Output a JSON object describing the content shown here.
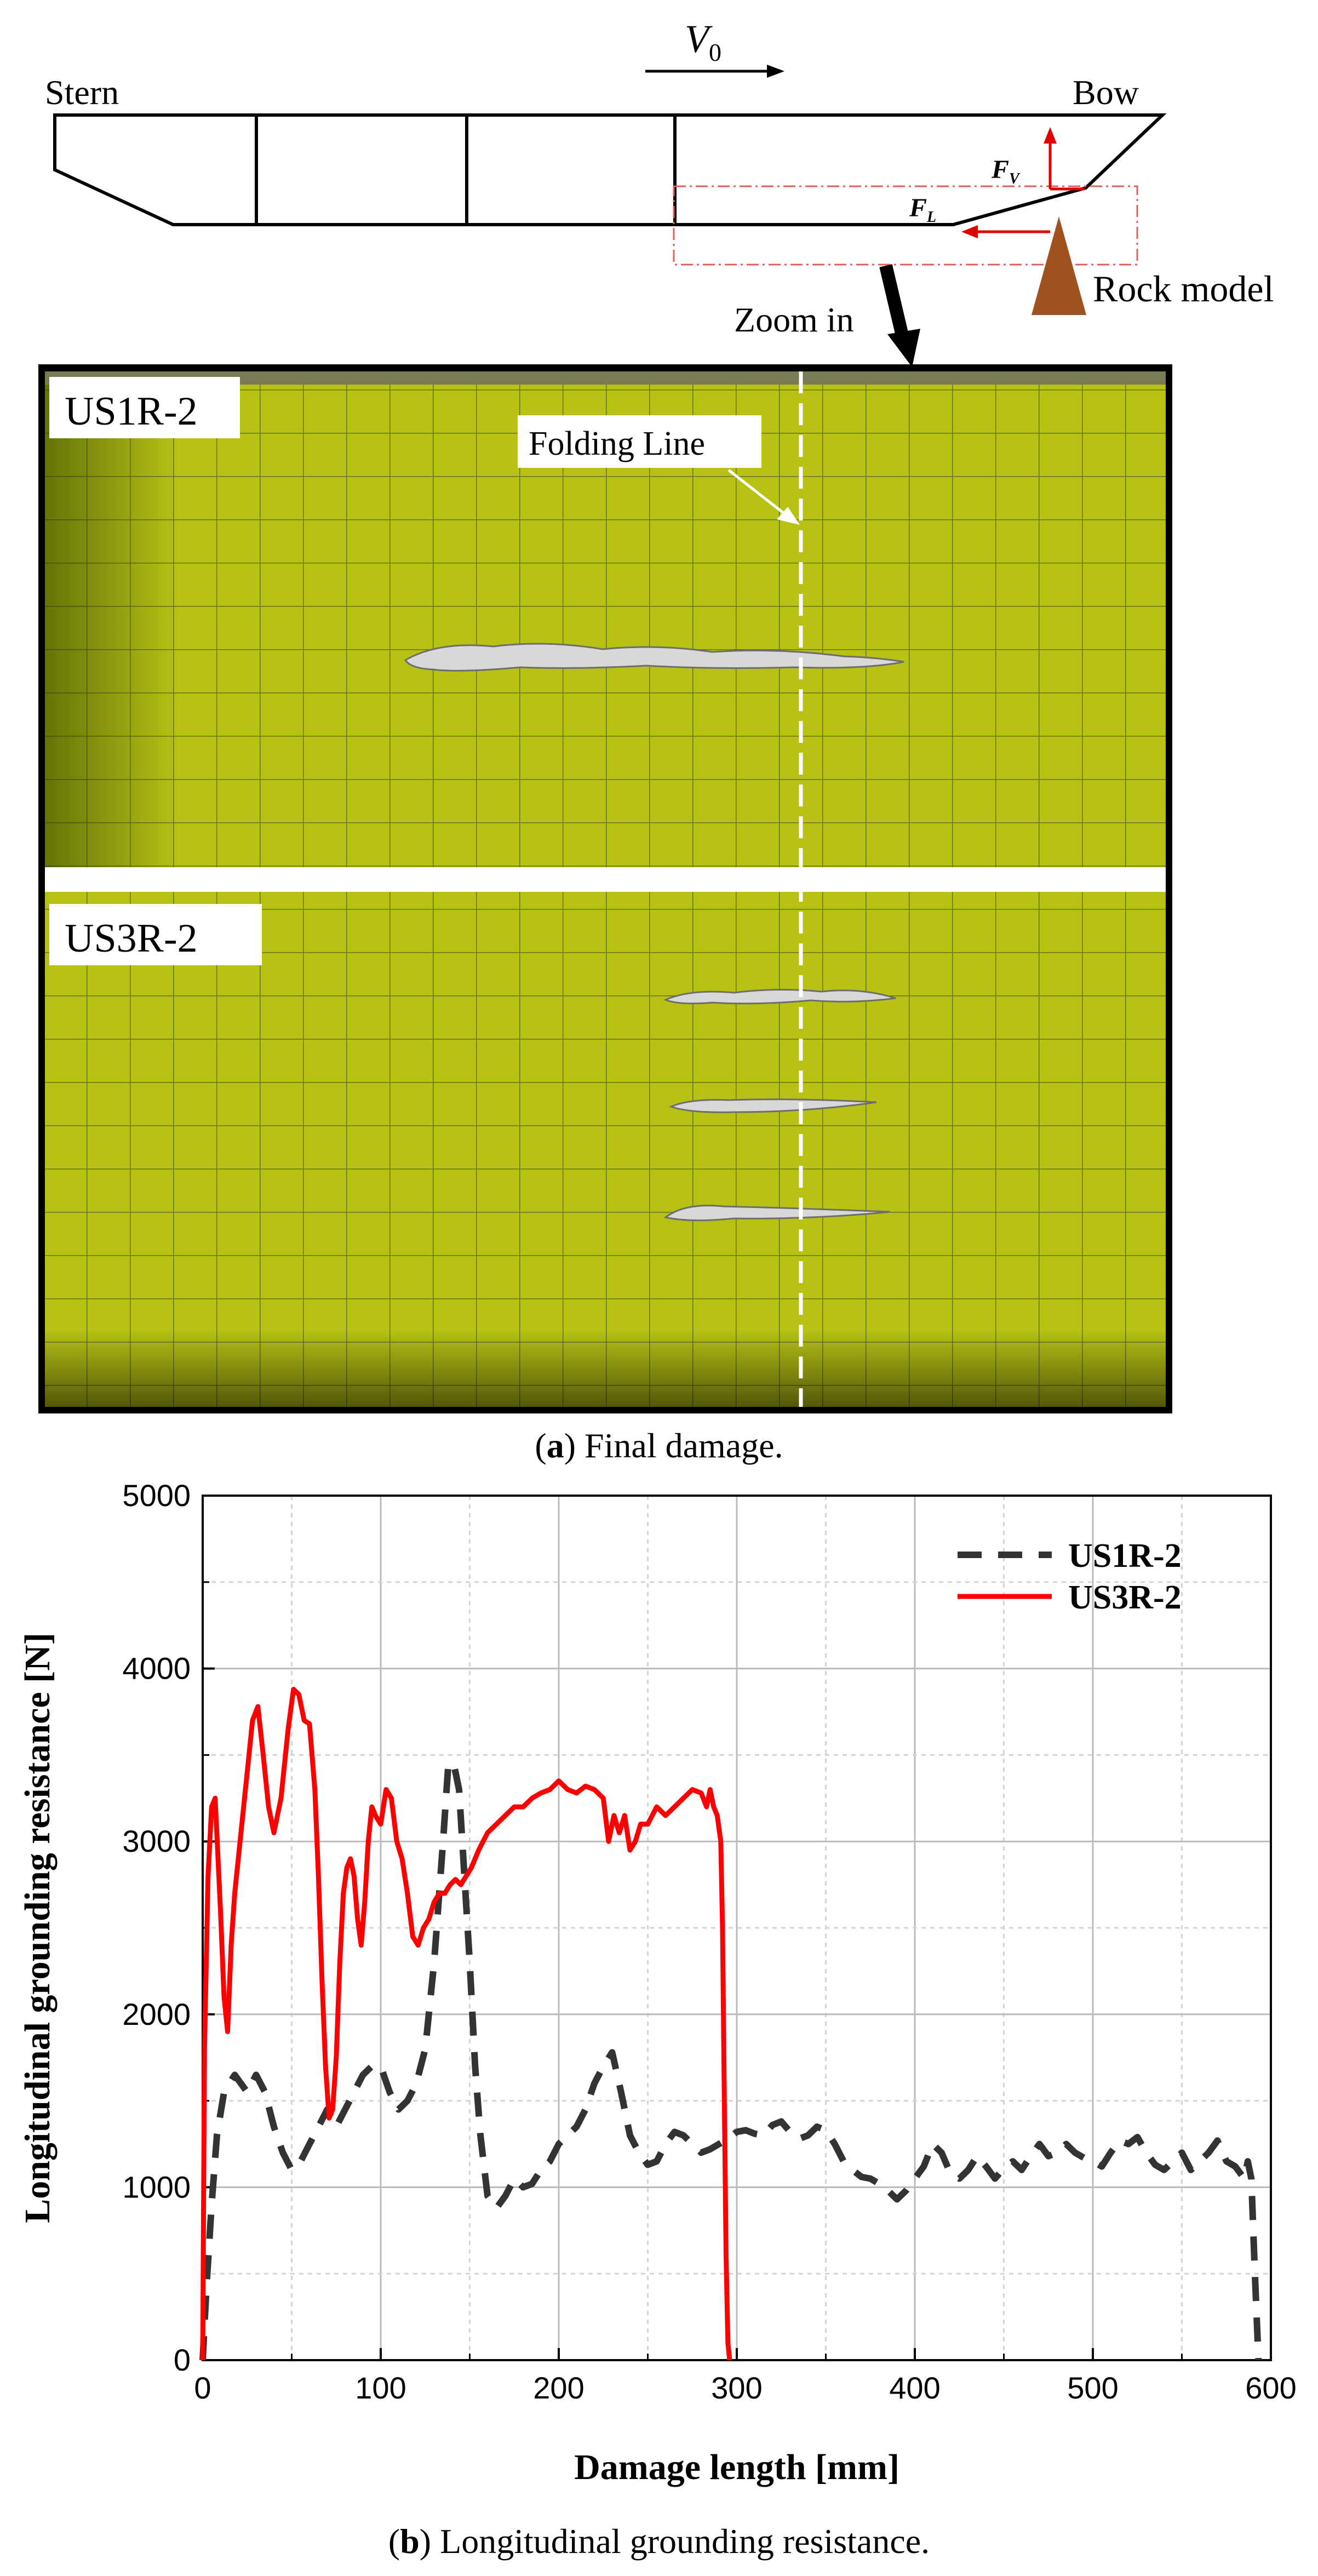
{
  "schematic": {
    "velocity_symbol": "V",
    "velocity_subscript": "0",
    "stern_label": "Stern",
    "bow_label": "Bow",
    "force_vertical_symbol": "F",
    "force_vertical_subscript": "V",
    "force_longitudinal_symbol": "F",
    "force_longitudinal_subscript": "L",
    "rock_label": "Rock model",
    "zoom_label": "Zoom in"
  },
  "photos": {
    "top_label": "US1R-2",
    "bottom_label": "US3R-2",
    "folding_line_label": "Folding Line",
    "plate_color": "#b7c214"
  },
  "captions": {
    "a_letter": "a",
    "a_text": " Final damage.",
    "b_letter": "b",
    "b_text": " Longitudinal grounding resistance."
  },
  "chart_data": {
    "type": "line",
    "xlabel": "Damage length [mm]",
    "ylabel": "Longitudinal grounding resistance [N]",
    "xlim": [
      0,
      600
    ],
    "ylim": [
      0,
      5000
    ],
    "xticks": [
      0,
      100,
      200,
      300,
      400,
      500,
      600
    ],
    "yticks": [
      0,
      1000,
      2000,
      3000,
      4000,
      5000
    ],
    "grid": true,
    "legend_position": "top-right",
    "series": [
      {
        "name": "US1R-2",
        "color": "#333333",
        "style": "dashed",
        "x": [
          0,
          2,
          5,
          8,
          12,
          18,
          25,
          30,
          35,
          40,
          45,
          50,
          55,
          60,
          65,
          70,
          75,
          80,
          85,
          90,
          95,
          100,
          105,
          110,
          115,
          120,
          125,
          130,
          135,
          138,
          141,
          144,
          147,
          150,
          153,
          156,
          160,
          165,
          170,
          175,
          180,
          185,
          190,
          195,
          200,
          205,
          210,
          215,
          220,
          225,
          230,
          235,
          240,
          245,
          250,
          255,
          260,
          265,
          270,
          275,
          280,
          285,
          290,
          295,
          300,
          305,
          310,
          315,
          320,
          325,
          330,
          335,
          340,
          345,
          350,
          355,
          360,
          365,
          370,
          375,
          380,
          385,
          390,
          395,
          400,
          405,
          410,
          415,
          420,
          425,
          430,
          435,
          440,
          445,
          450,
          455,
          460,
          465,
          470,
          475,
          480,
          485,
          490,
          495,
          500,
          505,
          510,
          515,
          520,
          525,
          530,
          535,
          540,
          545,
          550,
          555,
          560,
          565,
          570,
          575,
          580,
          585,
          587,
          589,
          591,
          593
        ],
        "y": [
          0,
          400,
          900,
          1300,
          1550,
          1650,
          1550,
          1650,
          1550,
          1350,
          1200,
          1100,
          1150,
          1250,
          1350,
          1450,
          1350,
          1450,
          1550,
          1650,
          1700,
          1700,
          1550,
          1450,
          1500,
          1600,
          1800,
          2300,
          3000,
          3450,
          3450,
          3300,
          2800,
          2300,
          1700,
          1300,
          950,
          880,
          950,
          1050,
          1000,
          1020,
          1100,
          1150,
          1250,
          1300,
          1350,
          1450,
          1600,
          1700,
          1780,
          1550,
          1300,
          1200,
          1130,
          1150,
          1250,
          1320,
          1300,
          1250,
          1200,
          1220,
          1250,
          1280,
          1320,
          1330,
          1310,
          1300,
          1360,
          1380,
          1320,
          1280,
          1300,
          1350,
          1330,
          1250,
          1150,
          1100,
          1060,
          1050,
          1020,
          980,
          930,
          980,
          1050,
          1120,
          1250,
          1200,
          1080,
          1050,
          1100,
          1180,
          1120,
          1050,
          1110,
          1150,
          1100,
          1180,
          1250,
          1180,
          1200,
          1250,
          1200,
          1170,
          1150,
          1120,
          1200,
          1270,
          1250,
          1290,
          1200,
          1130,
          1100,
          1150,
          1200,
          1100,
          1150,
          1200,
          1270,
          1150,
          1120,
          1050,
          1150,
          1050,
          500,
          0
        ]
      },
      {
        "name": "US3R-2",
        "color": "#ff0000",
        "style": "solid",
        "x": [
          0,
          1,
          3,
          5,
          7,
          10,
          12,
          14,
          16,
          18,
          20,
          22,
          25,
          28,
          31,
          34,
          37,
          40,
          44,
          48,
          51,
          54,
          57,
          60,
          63,
          65,
          67,
          69,
          71,
          73,
          75,
          77,
          79,
          81,
          83,
          85,
          87,
          89,
          91,
          93,
          95,
          97,
          100,
          103,
          106,
          109,
          112,
          115,
          118,
          121,
          124,
          127,
          130,
          133,
          136,
          139,
          142,
          145,
          148,
          151,
          155,
          160,
          165,
          170,
          175,
          180,
          185,
          190,
          195,
          200,
          205,
          210,
          215,
          220,
          225,
          228,
          231,
          234,
          237,
          240,
          243,
          246,
          250,
          255,
          260,
          265,
          270,
          275,
          280,
          283,
          285,
          287,
          289,
          291,
          292,
          293,
          294,
          295,
          296
        ],
        "y": [
          0,
          1800,
          2800,
          3200,
          3250,
          2600,
          2100,
          1900,
          2400,
          2700,
          2900,
          3100,
          3400,
          3700,
          3780,
          3500,
          3200,
          3050,
          3250,
          3650,
          3880,
          3850,
          3700,
          3680,
          3300,
          2800,
          2200,
          1700,
          1400,
          1450,
          1750,
          2300,
          2700,
          2850,
          2900,
          2800,
          2550,
          2400,
          2650,
          3000,
          3200,
          3150,
          3100,
          3300,
          3250,
          3000,
          2900,
          2700,
          2450,
          2400,
          2500,
          2550,
          2650,
          2700,
          2700,
          2750,
          2780,
          2750,
          2800,
          2850,
          2950,
          3050,
          3100,
          3150,
          3200,
          3200,
          3250,
          3280,
          3300,
          3350,
          3300,
          3280,
          3320,
          3300,
          3250,
          3000,
          3150,
          3050,
          3150,
          2950,
          3000,
          3100,
          3100,
          3200,
          3150,
          3200,
          3250,
          3300,
          3280,
          3200,
          3300,
          3200,
          3150,
          3000,
          2500,
          1500,
          600,
          100,
          0
        ]
      }
    ]
  }
}
